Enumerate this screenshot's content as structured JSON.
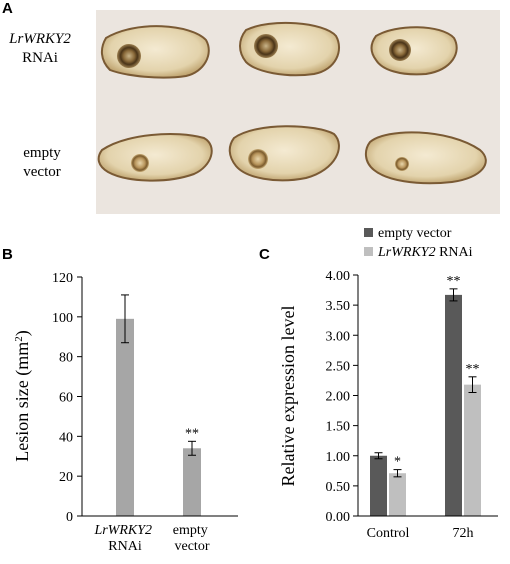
{
  "panels": {
    "a": {
      "letter": "A",
      "rows": [
        {
          "line1": "LrWRKY2",
          "line2": "RNAi"
        },
        {
          "line1": "empty",
          "line2": "vector"
        }
      ]
    },
    "b": {
      "letter": "B"
    },
    "c": {
      "letter": "C"
    }
  },
  "colors": {
    "photo_bg": "#ebe5df",
    "bar_b": "#a6a6a6",
    "dark": "#595959",
    "light": "#bfbfbf"
  },
  "chart_data": [
    {
      "type": "bar",
      "panel": "B",
      "categories": [
        {
          "line1": "LrWRKY2",
          "line2": "RNAi"
        },
        {
          "line1": "empty",
          "line2": "vector"
        }
      ],
      "values": [
        99,
        34
      ],
      "errors": [
        12,
        3.5
      ],
      "annotations": [
        "",
        "**"
      ],
      "ylabel": "Lesion size (mm²)",
      "ylabel_main": "Lesion size (mm",
      "ylabel_sup": "2",
      "ylabel_end": ")",
      "ylim": [
        0,
        120
      ],
      "yticks": [
        "0",
        "20",
        "40",
        "60",
        "80",
        "100",
        "120"
      ],
      "grid": false
    },
    {
      "type": "bar",
      "panel": "C",
      "categories": [
        "Control",
        "72h"
      ],
      "series": [
        {
          "name": "empty vector",
          "values": [
            1.0,
            3.67
          ],
          "errors": [
            0.05,
            0.1
          ],
          "annotations": [
            "",
            "**"
          ]
        },
        {
          "name": "LrWRKY2 RNAi",
          "values": [
            0.71,
            2.18
          ],
          "errors": [
            0.06,
            0.13
          ],
          "annotations": [
            "*",
            "**"
          ]
        }
      ],
      "legend": {
        "placement": "top",
        "items": [
          {
            "italic": "",
            "plain": "empty vector"
          },
          {
            "italic": "LrWRKY2",
            "plain": " RNAi"
          }
        ]
      },
      "ylabel": "Relative expression level",
      "ylim": [
        0,
        4
      ],
      "yticks": [
        "0.00",
        "0.50",
        "1.00",
        "1.50",
        "2.00",
        "2.50",
        "3.00",
        "3.50",
        "4.00"
      ],
      "grid": false
    }
  ]
}
